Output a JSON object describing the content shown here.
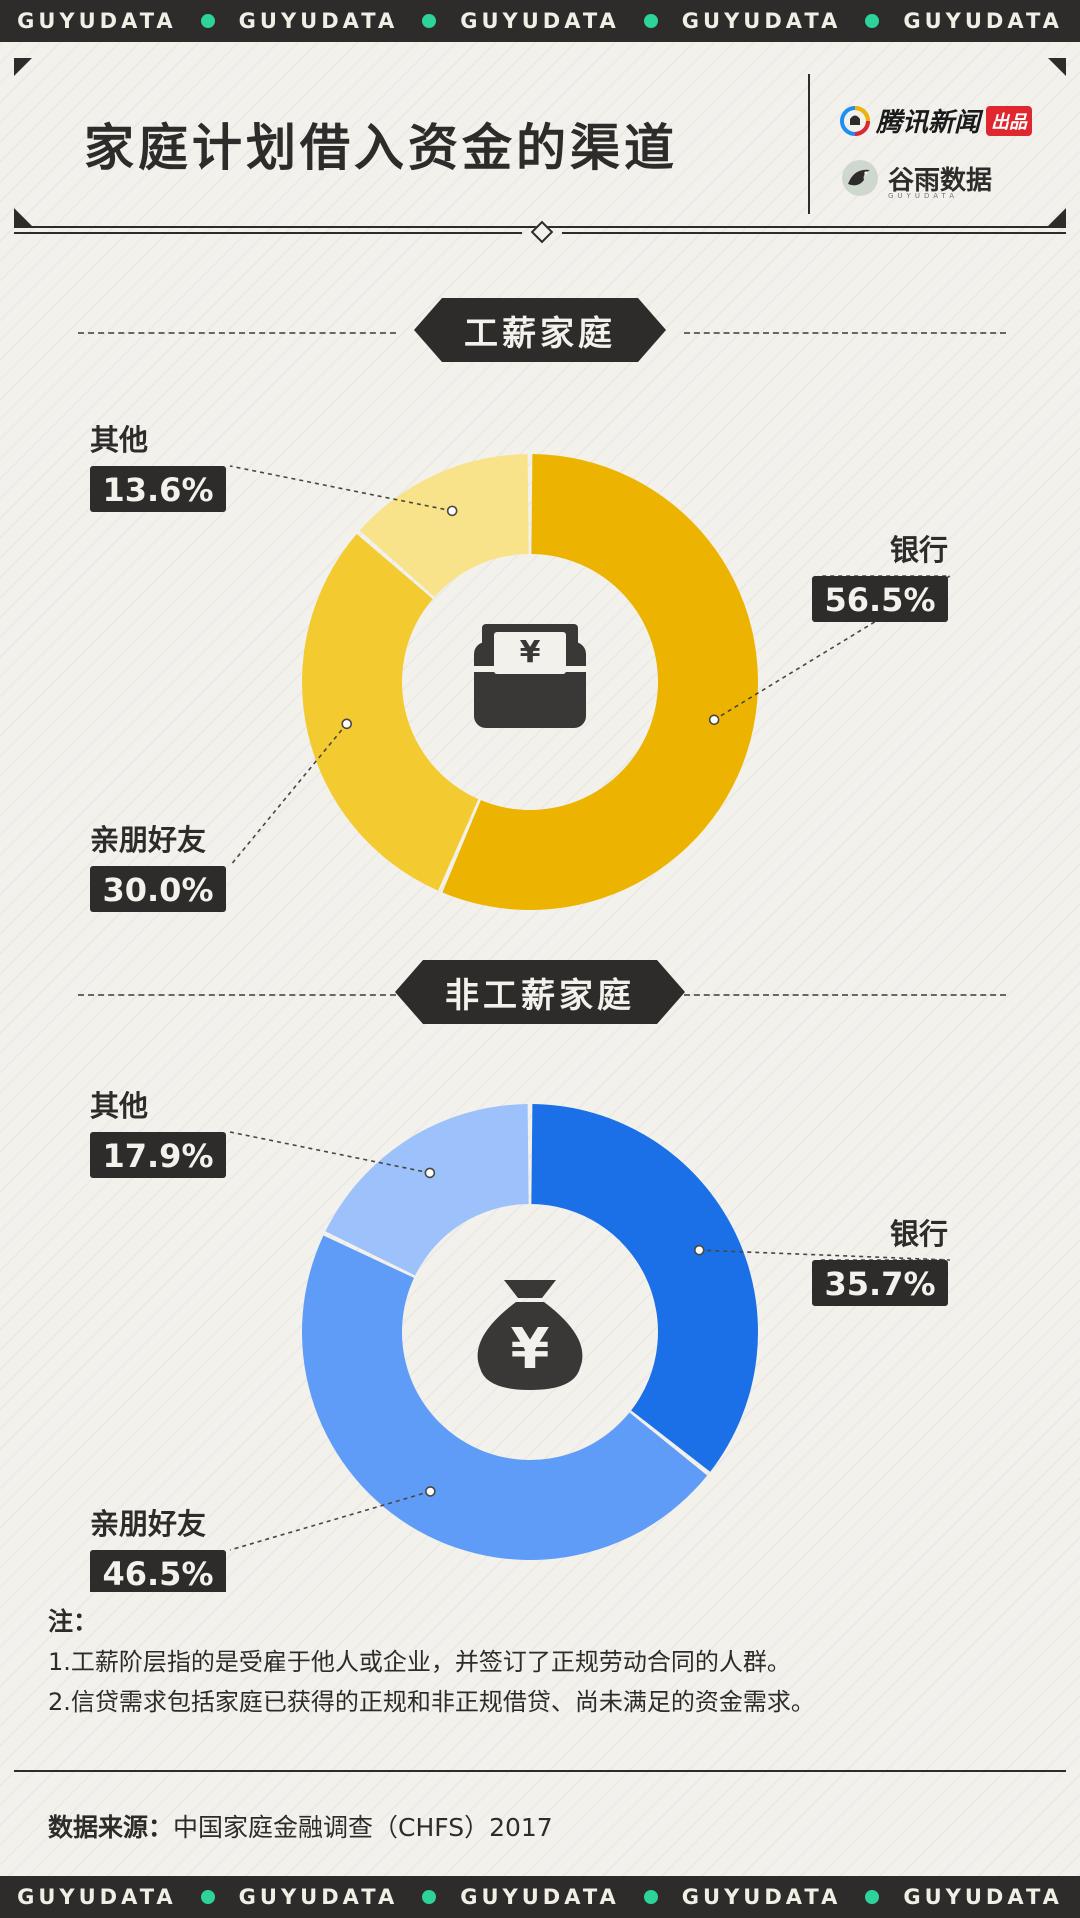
{
  "ticker_text": "GUYUDATA",
  "title": "家庭计划借入资金的渠道",
  "logos": {
    "tencent": "腾讯新闻",
    "tencent_badge": "出品",
    "guyu": "谷雨数据",
    "guyu_sub": "GUYUDATA"
  },
  "chart_data": [
    {
      "type": "pie",
      "variant": "donut",
      "title": "工薪家庭",
      "center_icon": "wallet-yuan-icon",
      "center_icon_glyph": "¥",
      "slices": [
        {
          "label": "银行",
          "value": 56.5,
          "display": "56.5%",
          "color": "#ecb400"
        },
        {
          "label": "亲朋好友",
          "value": 30.0,
          "display": "30.0%",
          "color": "#f3ca2f"
        },
        {
          "label": "其他",
          "value": 13.6,
          "display": "13.6%",
          "color": "#f9e38a"
        }
      ]
    },
    {
      "type": "pie",
      "variant": "donut",
      "title": "非工薪家庭",
      "center_icon": "money-bag-yuan-icon",
      "center_icon_glyph": "¥",
      "slices": [
        {
          "label": "银行",
          "value": 35.7,
          "display": "35.7%",
          "color": "#1b70e8"
        },
        {
          "label": "亲朋好友",
          "value": 46.5,
          "display": "46.5%",
          "color": "#5f9cf7"
        },
        {
          "label": "其他",
          "value": 17.9,
          "display": "17.9%",
          "color": "#9cc1fb"
        }
      ]
    }
  ],
  "notes": {
    "heading": "注：",
    "items": [
      "1.工薪阶层指的是受雇于他人或企业，并签订了正规劳动合同的人群。",
      "2.信贷需求包括家庭已获得的正规和非正规借贷、尚未满足的资金需求。"
    ]
  },
  "source": {
    "label": "数据来源：",
    "text": "中国家庭金融调查（CHFS）2017"
  }
}
